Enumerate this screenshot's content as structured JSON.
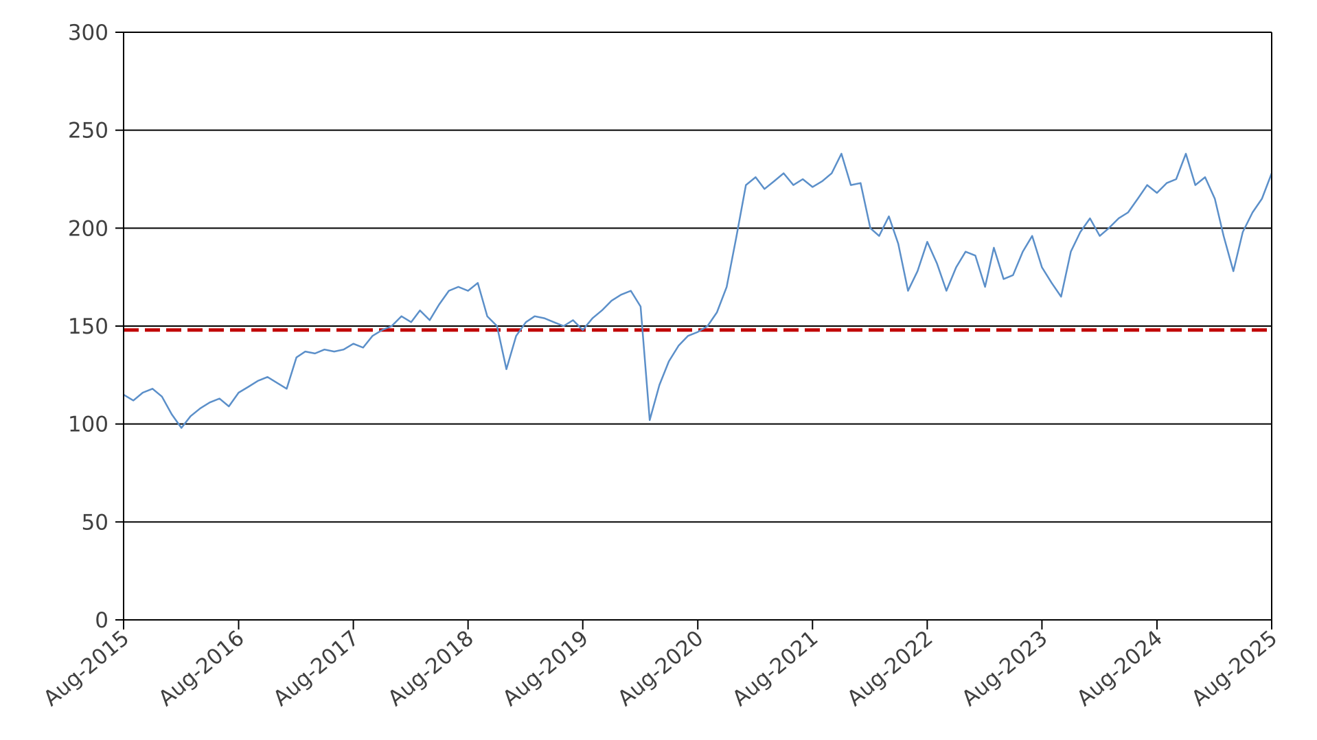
{
  "chart_data": {
    "type": "line",
    "title": "",
    "xlabel": "",
    "ylabel": "",
    "xlim": [
      "2015-08-01",
      "2025-08-01"
    ],
    "ylim": [
      0,
      300
    ],
    "grid": true,
    "legend": "none",
    "x_ticks": [
      "Aug-2015",
      "Aug-2016",
      "Aug-2017",
      "Aug-2018",
      "Aug-2019",
      "Aug-2020",
      "Aug-2021",
      "Aug-2022",
      "Aug-2023",
      "Aug-2024",
      "Aug-2025"
    ],
    "y_ticks": [
      "0",
      "50",
      "100",
      "150",
      "200",
      "250",
      "300"
    ],
    "reference_line": {
      "value": 148,
      "color": "#c00000",
      "style": "dashed"
    },
    "series": [
      {
        "color": "#5b8fc9",
        "x": [
          "2015-08-01",
          "2015-09-01",
          "2015-10-01",
          "2015-11-01",
          "2015-12-01",
          "2016-01-01",
          "2016-02-01",
          "2016-03-01",
          "2016-04-01",
          "2016-05-01",
          "2016-06-01",
          "2016-07-01",
          "2016-08-01",
          "2016-09-01",
          "2016-10-01",
          "2016-11-01",
          "2016-12-01",
          "2017-01-01",
          "2017-02-01",
          "2017-03-01",
          "2017-04-01",
          "2017-05-01",
          "2017-06-01",
          "2017-07-01",
          "2017-08-01",
          "2017-09-01",
          "2017-10-01",
          "2017-11-01",
          "2017-12-01",
          "2018-01-01",
          "2018-02-01",
          "2018-03-01",
          "2018-04-01",
          "2018-05-01",
          "2018-06-01",
          "2018-07-01",
          "2018-08-01",
          "2018-09-01",
          "2018-10-01",
          "2018-11-01",
          "2018-12-01",
          "2019-01-01",
          "2019-02-01",
          "2019-03-01",
          "2019-04-01",
          "2019-05-01",
          "2019-06-01",
          "2019-07-01",
          "2019-08-01",
          "2019-09-01",
          "2019-10-01",
          "2019-11-01",
          "2019-12-01",
          "2020-01-01",
          "2020-02-01",
          "2020-03-01",
          "2020-04-01",
          "2020-05-01",
          "2020-06-01",
          "2020-07-01",
          "2020-08-01",
          "2020-09-01",
          "2020-10-01",
          "2020-11-01",
          "2020-12-01",
          "2021-01-01",
          "2021-02-01",
          "2021-03-01",
          "2021-04-01",
          "2021-05-01",
          "2021-06-01",
          "2021-07-01",
          "2021-08-01",
          "2021-09-01",
          "2021-10-01",
          "2021-11-01",
          "2021-12-01",
          "2022-01-01",
          "2022-02-01",
          "2022-03-01",
          "2022-04-01",
          "2022-05-01",
          "2022-06-01",
          "2022-07-01",
          "2022-08-01",
          "2022-09-01",
          "2022-10-01",
          "2022-11-01",
          "2022-12-01",
          "2023-01-01",
          "2023-02-01",
          "2023-03-01",
          "2023-04-01",
          "2023-05-01",
          "2023-06-01",
          "2023-07-01",
          "2023-08-01",
          "2023-09-01",
          "2023-10-01",
          "2023-11-01",
          "2023-12-01",
          "2024-01-01",
          "2024-02-01",
          "2024-03-01",
          "2024-04-01",
          "2024-05-01",
          "2024-06-01",
          "2024-07-01",
          "2024-08-01",
          "2024-09-01",
          "2024-10-01",
          "2024-11-01",
          "2024-12-01",
          "2025-01-01",
          "2025-02-01",
          "2025-03-01",
          "2025-04-01",
          "2025-05-01",
          "2025-06-01",
          "2025-07-01",
          "2025-08-01"
        ],
        "values": [
          115,
          112,
          116,
          118,
          114,
          105,
          98,
          104,
          108,
          111,
          113,
          109,
          116,
          119,
          122,
          124,
          121,
          118,
          134,
          137,
          136,
          138,
          137,
          138,
          141,
          139,
          145,
          148,
          150,
          155,
          152,
          158,
          153,
          161,
          168,
          170,
          168,
          172,
          155,
          150,
          128,
          145,
          152,
          155,
          154,
          152,
          150,
          153,
          148,
          154,
          158,
          163,
          166,
          168,
          160,
          102,
          120,
          132,
          140,
          145,
          147,
          150,
          157,
          170,
          195,
          222,
          226,
          220,
          224,
          228,
          222,
          225,
          221,
          224,
          228,
          238,
          222,
          223,
          200,
          196,
          206,
          192,
          168,
          178,
          193,
          182,
          168,
          180,
          188,
          186,
          170,
          190,
          174,
          176,
          188,
          196,
          180,
          172,
          165,
          188,
          198,
          205,
          196,
          200,
          205,
          208,
          215,
          222,
          218,
          223,
          225,
          238,
          222,
          226,
          215,
          196,
          178,
          198,
          208,
          215,
          228
        ]
      }
    ]
  }
}
